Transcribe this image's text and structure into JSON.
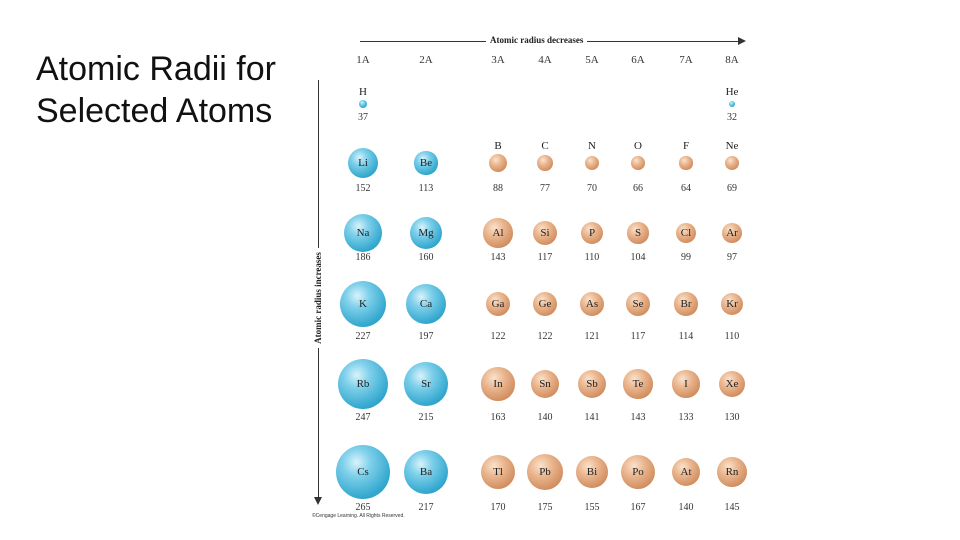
{
  "slide_title": "Atomic Radii for Selected Atoms",
  "figure": {
    "top_arrow_label": "Atomic radius decreases",
    "side_arrow_label": "Atomic radius increases",
    "group_labels": [
      "1A",
      "2A",
      "3A",
      "4A",
      "5A",
      "6A",
      "7A",
      "8A"
    ],
    "credit": "©Cengage Learning. All Rights Reserved.",
    "colors": {
      "s_block": "#35a9cf",
      "p_block": "#d18d5f"
    },
    "elements": [
      {
        "symbol": "H",
        "radius": 37,
        "group": "1A",
        "period": 1,
        "block": "s"
      },
      {
        "symbol": "He",
        "radius": 32,
        "group": "8A",
        "period": 1,
        "block": "s"
      },
      {
        "symbol": "Li",
        "radius": 152,
        "group": "1A",
        "period": 2,
        "block": "s"
      },
      {
        "symbol": "Be",
        "radius": 113,
        "group": "2A",
        "period": 2,
        "block": "s"
      },
      {
        "symbol": "B",
        "radius": 88,
        "group": "3A",
        "period": 2,
        "block": "p"
      },
      {
        "symbol": "C",
        "radius": 77,
        "group": "4A",
        "period": 2,
        "block": "p"
      },
      {
        "symbol": "N",
        "radius": 70,
        "group": "5A",
        "period": 2,
        "block": "p"
      },
      {
        "symbol": "O",
        "radius": 66,
        "group": "6A",
        "period": 2,
        "block": "p"
      },
      {
        "symbol": "F",
        "radius": 64,
        "group": "7A",
        "period": 2,
        "block": "p"
      },
      {
        "symbol": "Ne",
        "radius": 69,
        "group": "8A",
        "period": 2,
        "block": "p"
      },
      {
        "symbol": "Na",
        "radius": 186,
        "group": "1A",
        "period": 3,
        "block": "s"
      },
      {
        "symbol": "Mg",
        "radius": 160,
        "group": "2A",
        "period": 3,
        "block": "s"
      },
      {
        "symbol": "Al",
        "radius": 143,
        "group": "3A",
        "period": 3,
        "block": "p"
      },
      {
        "symbol": "Si",
        "radius": 117,
        "group": "4A",
        "period": 3,
        "block": "p"
      },
      {
        "symbol": "P",
        "radius": 110,
        "group": "5A",
        "period": 3,
        "block": "p"
      },
      {
        "symbol": "S",
        "radius": 104,
        "group": "6A",
        "period": 3,
        "block": "p"
      },
      {
        "symbol": "Cl",
        "radius": 99,
        "group": "7A",
        "period": 3,
        "block": "p"
      },
      {
        "symbol": "Ar",
        "radius": 97,
        "group": "8A",
        "period": 3,
        "block": "p"
      },
      {
        "symbol": "K",
        "radius": 227,
        "group": "1A",
        "period": 4,
        "block": "s"
      },
      {
        "symbol": "Ca",
        "radius": 197,
        "group": "2A",
        "period": 4,
        "block": "s"
      },
      {
        "symbol": "Ga",
        "radius": 122,
        "group": "3A",
        "period": 4,
        "block": "p"
      },
      {
        "symbol": "Ge",
        "radius": 122,
        "group": "4A",
        "period": 4,
        "block": "p"
      },
      {
        "symbol": "As",
        "radius": 121,
        "group": "5A",
        "period": 4,
        "block": "p"
      },
      {
        "symbol": "Se",
        "radius": 117,
        "group": "6A",
        "period": 4,
        "block": "p"
      },
      {
        "symbol": "Br",
        "radius": 114,
        "group": "7A",
        "period": 4,
        "block": "p"
      },
      {
        "symbol": "Kr",
        "radius": 110,
        "group": "8A",
        "period": 4,
        "block": "p"
      },
      {
        "symbol": "Rb",
        "radius": 247,
        "group": "1A",
        "period": 5,
        "block": "s"
      },
      {
        "symbol": "Sr",
        "radius": 215,
        "group": "2A",
        "period": 5,
        "block": "s"
      },
      {
        "symbol": "In",
        "radius": 163,
        "group": "3A",
        "period": 5,
        "block": "p"
      },
      {
        "symbol": "Sn",
        "radius": 140,
        "group": "4A",
        "period": 5,
        "block": "p"
      },
      {
        "symbol": "Sb",
        "radius": 141,
        "group": "5A",
        "period": 5,
        "block": "p"
      },
      {
        "symbol": "Te",
        "radius": 143,
        "group": "6A",
        "period": 5,
        "block": "p"
      },
      {
        "symbol": "I",
        "radius": 133,
        "group": "7A",
        "period": 5,
        "block": "p"
      },
      {
        "symbol": "Xe",
        "radius": 130,
        "group": "8A",
        "period": 5,
        "block": "p"
      },
      {
        "symbol": "Cs",
        "radius": 265,
        "group": "1A",
        "period": 6,
        "block": "s"
      },
      {
        "symbol": "Ba",
        "radius": 217,
        "group": "2A",
        "period": 6,
        "block": "s"
      },
      {
        "symbol": "Tl",
        "radius": 170,
        "group": "3A",
        "period": 6,
        "block": "p"
      },
      {
        "symbol": "Pb",
        "radius": 175,
        "group": "4A",
        "period": 6,
        "block": "p"
      },
      {
        "symbol": "Bi",
        "radius": 155,
        "group": "5A",
        "period": 6,
        "block": "p"
      },
      {
        "symbol": "Po",
        "radius": 167,
        "group": "6A",
        "period": 6,
        "block": "p"
      },
      {
        "symbol": "At",
        "radius": 140,
        "group": "7A",
        "period": 6,
        "block": "p"
      },
      {
        "symbol": "Rn",
        "radius": 145,
        "group": "8A",
        "period": 6,
        "block": "p"
      }
    ]
  }
}
